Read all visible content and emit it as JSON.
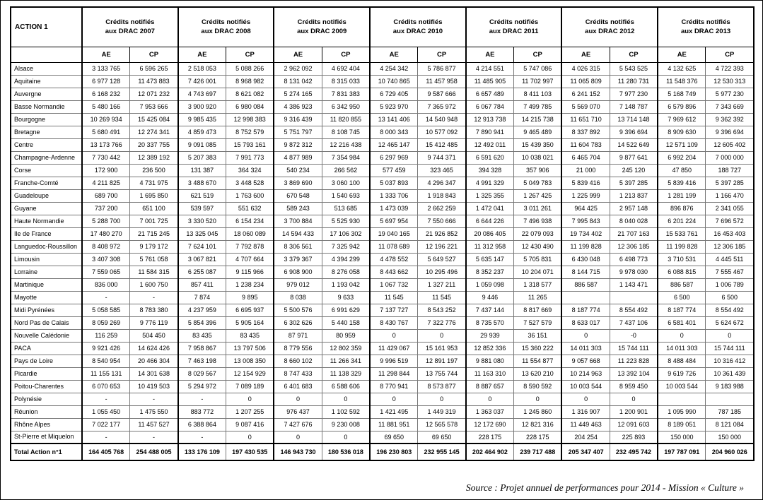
{
  "table": {
    "corner_label": "ACTION 1",
    "subheaders": [
      "AE",
      "CP"
    ],
    "year_groups": [
      {
        "line1": "Crédits notifiés",
        "line2": "aux DRAC 2007"
      },
      {
        "line1": "Crédits notifiés",
        "line2": "aux DRAC 2008"
      },
      {
        "line1": "Crédits notifiés",
        "line2": "aux DRAC 2009"
      },
      {
        "line1": "Crédits notifiés",
        "line2": "aux DRAC 2010"
      },
      {
        "line1": "Crédits notifiés",
        "line2": "aux DRAC 2011"
      },
      {
        "line1": "Crédits notifiés",
        "line2": "aux DRAC 2012"
      },
      {
        "line1": "Crédits notifiés",
        "line2": "aux DRAC 2013"
      }
    ],
    "rows": [
      {
        "region": "Alsace",
        "values": [
          "3 133 765",
          "6 596 265",
          "2 518 053",
          "5 088 266",
          "2 962 092",
          "4 692 404",
          "4 254 342",
          "5 786 877",
          "4 214 551",
          "5 747 086",
          "4 026 315",
          "5 543 525",
          "4 132 625",
          "4 722 393"
        ]
      },
      {
        "region": "Aquitaine",
        "values": [
          "6 977 128",
          "11 473 883",
          "7 426 001",
          "8 968 982",
          "8 131 042",
          "8 315 033",
          "10 740 865",
          "11 457 958",
          "11 485 905",
          "11 702 997",
          "11 065 809",
          "11 280 731",
          "11 548 376",
          "12 530 313"
        ]
      },
      {
        "region": "Auvergne",
        "values": [
          "6 168 232",
          "12 071 232",
          "4 743 697",
          "8 621 082",
          "5 274 165",
          "7 831 383",
          "6 729 405",
          "9 587 666",
          "6 657 489",
          "8 411 103",
          "6 241 152",
          "7 977 230",
          "5 168 749",
          "5 977 230"
        ]
      },
      {
        "region": "Basse Normandie",
        "values": [
          "5 480 166",
          "7 953 666",
          "3 900 920",
          "6 980 084",
          "4 386 923",
          "6 342 950",
          "5 923 970",
          "7 365 972",
          "6 067 784",
          "7 499 785",
          "5 569 070",
          "7 148 787",
          "6 579 896",
          "7 343 669"
        ]
      },
      {
        "region": "Bourgogne",
        "values": [
          "10 269 934",
          "15 425 084",
          "9 985 435",
          "12 998 383",
          "9 316 439",
          "11 820 855",
          "13 141 406",
          "14 540 948",
          "12 913 738",
          "14 215 738",
          "11 651 710",
          "13 714 148",
          "7 969 612",
          "9 362 392"
        ]
      },
      {
        "region": "Bretagne",
        "values": [
          "5 680 491",
          "12 274 341",
          "4 859 473",
          "8 752 579",
          "5 751 797",
          "8 108 745",
          "8 000 343",
          "10 577 092",
          "7 890 941",
          "9 465 489",
          "8 337 892",
          "9 396 694",
          "8 909 630",
          "9 396 694"
        ]
      },
      {
        "region": "Centre",
        "values": [
          "13 173 766",
          "20 337 755",
          "9 091 085",
          "15 793 161",
          "9 872 312",
          "12 216 438",
          "12 465 147",
          "15 412 485",
          "12 492 011",
          "15 439 350",
          "11 604 783",
          "14 522 649",
          "12 571 109",
          "12 605 402"
        ]
      },
      {
        "region": "Champagne-Ardenne",
        "values": [
          "7 730 442",
          "12 389 192",
          "5 207 383",
          "7 991 773",
          "4 877 989",
          "7 354 984",
          "6 297 969",
          "9 744 371",
          "6 591 620",
          "10 038 021",
          "6 465 704",
          "9 877 641",
          "6 992 204",
          "7 000 000"
        ]
      },
      {
        "region": "Corse",
        "values": [
          "172 900",
          "236 500",
          "131 387",
          "364 324",
          "540 234",
          "266 562",
          "577 459",
          "323 465",
          "394 328",
          "357 906",
          "21 000",
          "245 120",
          "47 850",
          "188 727"
        ]
      },
      {
        "region": "Franche-Comté",
        "values": [
          "4 211 825",
          "4 731 975",
          "3 488 670",
          "3 448 528",
          "3 869 690",
          "3 060 100",
          "5 037 893",
          "4 296 347",
          "4 991 329",
          "5 049 783",
          "5 839 416",
          "5 397 285",
          "5 839 416",
          "5 397 285"
        ]
      },
      {
        "region": "Guadeloupe",
        "values": [
          "689 700",
          "1 695 850",
          "621 519",
          "1 763 600",
          "670 548",
          "1 540 693",
          "1 333 706",
          "1 918 843",
          "1 325 355",
          "1 267 425",
          "1 225 999",
          "1 213 837",
          "1 281 199",
          "1 166 470"
        ]
      },
      {
        "region": "Guyane",
        "values": [
          "737 200",
          "651 100",
          "539 597",
          "551 632",
          "589 243",
          "513 685",
          "1 473 039",
          "2 662 259",
          "1 472 041",
          "3 011 261",
          "964 425",
          "2 957 148",
          "896 876",
          "2 341 055"
        ]
      },
      {
        "region": "Haute Normandie",
        "values": [
          "5 288 700",
          "7 001 725",
          "3 330 520",
          "6 154 234",
          "3 700 884",
          "5 525 930",
          "5 697 954",
          "7 550 666",
          "6 644 226",
          "7 496 938",
          "7 995 843",
          "8 040 028",
          "6 201 224",
          "7 696 572"
        ]
      },
      {
        "region": "Ile de France",
        "values": [
          "17 480 270",
          "21 715 245",
          "13 325 045",
          "18 060 089",
          "14 594 433",
          "17 106 302",
          "19 040 165",
          "21 926 852",
          "20 086 405",
          "22 079 093",
          "19 734 402",
          "21 707 163",
          "15 533 761",
          "16 453 403"
        ]
      },
      {
        "region": "Languedoc-Roussillon",
        "values": [
          "8 408 972",
          "9 179 172",
          "7 624 101",
          "7 792 878",
          "8 306 561",
          "7 325 942",
          "11 078 689",
          "12 196 221",
          "11 312 958",
          "12 430 490",
          "11 199 828",
          "12 306 185",
          "11 199 828",
          "12 306 185"
        ]
      },
      {
        "region": "Limousin",
        "values": [
          "3 407 308",
          "5 761 058",
          "3 067 821",
          "4 707 664",
          "3 379 367",
          "4 394 299",
          "4 478 552",
          "5 649 527",
          "5 635 147",
          "5 705 831",
          "6 430 048",
          "6 498 773",
          "3 710 531",
          "4 445 511"
        ]
      },
      {
        "region": "Lorraine",
        "values": [
          "7 559 065",
          "11 584 315",
          "6 255 087",
          "9 115 966",
          "6 908 900",
          "8 276 058",
          "8 443 662",
          "10 295 496",
          "8 352 237",
          "10 204 071",
          "8 144 715",
          "9 978 030",
          "6 088 815",
          "7 555 467"
        ]
      },
      {
        "region": "Martinique",
        "values": [
          "836 000",
          "1 600 750",
          "857 411",
          "1 238 234",
          "979 012",
          "1 193 042",
          "1 067 732",
          "1 327 211",
          "1 059 098",
          "1 318 577",
          "886 587",
          "1 143 471",
          "886 587",
          "1 006 789"
        ]
      },
      {
        "region": "Mayotte",
        "values": [
          "-",
          "-",
          "7 874",
          "9 895",
          "8 038",
          "9 633",
          "11 545",
          "11 545",
          "9 446",
          "11 265",
          "",
          "",
          "6 500",
          "6 500"
        ]
      },
      {
        "region": "Midi Pyrénées",
        "values": [
          "5 058 585",
          "8 783 380",
          "4 237 959",
          "6 695 937",
          "5 500 576",
          "6 991 629",
          "7 137 727",
          "8 543 252",
          "7 437 144",
          "8 817 669",
          "8 187 774",
          "8 554 492",
          "8 187 774",
          "8 554 492"
        ]
      },
      {
        "region": "Nord Pas de Calais",
        "values": [
          "8 059 269",
          "9 776 119",
          "5 854 396",
          "5 905 164",
          "6 302 626",
          "5 440 158",
          "8 430 767",
          "7 322 776",
          "8 735 570",
          "7 527 579",
          "8 633 017",
          "7 437 106",
          "6 581 401",
          "5 624 672"
        ]
      },
      {
        "region": "Nouvelle Calédonie",
        "values": [
          "116 259",
          "504 450",
          "83 435",
          "83 435",
          "87 971",
          "80 959",
          "0",
          "0",
          "29 939",
          "36 151",
          "0",
          "-0",
          "0",
          "0"
        ]
      },
      {
        "region": "PACA",
        "values": [
          "9 921 426",
          "14 624 426",
          "7 958 867",
          "13 797 506",
          "8 779 556",
          "12 802 359",
          "11 429 067",
          "15 161 953",
          "12 852 336",
          "15 360 222",
          "14 011 303",
          "15 744 111",
          "14 011 303",
          "15 744 111"
        ]
      },
      {
        "region": "Pays de Loire",
        "values": [
          "8 540 954",
          "20 466 304",
          "7 463 198",
          "13 008 350",
          "8 660 102",
          "11 266 341",
          "9 996 519",
          "12 891 197",
          "9 881 080",
          "11 554 877",
          "9 057 668",
          "11 223 828",
          "8 488 484",
          "10 316 412"
        ]
      },
      {
        "region": "Picardie",
        "values": [
          "11 155 131",
          "14 301 638",
          "8 029 567",
          "12 154 929",
          "8 747 433",
          "11 138 329",
          "11 298 844",
          "13 755 744",
          "11 163 310",
          "13 620 210",
          "10 214 963",
          "13 392 104",
          "9 619 726",
          "10 361 439"
        ]
      },
      {
        "region": "Poitou-Charentes",
        "values": [
          "6 070 653",
          "10 419 503",
          "5 294 972",
          "7 089 189",
          "6 401 683",
          "6 588 606",
          "8 770 941",
          "8 573 877",
          "8 887 657",
          "8 590 592",
          "10 003 544",
          "8 959 450",
          "10 003 544",
          "9 183 988"
        ]
      },
      {
        "region": "Polynésie",
        "values": [
          "-",
          "-",
          "-",
          "0",
          "0",
          "0",
          "0",
          "0",
          "0",
          "0",
          "0",
          "0",
          "",
          ""
        ]
      },
      {
        "region": "Réunion",
        "values": [
          "1 055 450",
          "1 475 550",
          "883 772",
          "1 207 255",
          "976 437",
          "1 102 592",
          "1 421 495",
          "1 449 319",
          "1 363 037",
          "1 245 860",
          "1 316 907",
          "1 200 901",
          "1 095 990",
          "787 185"
        ]
      },
      {
        "region": "Rhône Alpes",
        "values": [
          "7 022 177",
          "11 457 527",
          "6 388 864",
          "9 087 416",
          "7 427 676",
          "9 230 008",
          "11 881 951",
          "12 565 578",
          "12 172 690",
          "12 821 316",
          "11 449 463",
          "12 091 603",
          "8 189 051",
          "8 121 084"
        ]
      },
      {
        "region": "St-Pierre et Miquelon",
        "values": [
          "-",
          "-",
          "-",
          "0",
          "0",
          "0",
          "69 650",
          "69 650",
          "228 175",
          "228 175",
          "204 254",
          "225 893",
          "150 000",
          "150 000"
        ]
      }
    ],
    "total": {
      "label": "Total Action n°1",
      "values": [
        "164 405 768",
        "254 488 005",
        "133 176 109",
        "197 430 535",
        "146 943 730",
        "180 536 018",
        "196 230 803",
        "232 955 145",
        "202 464 902",
        "239 717 488",
        "205 347 407",
        "232 495 742",
        "197 787 091",
        "204 960 026"
      ]
    }
  },
  "source": "Source : Projet annuel de performances pour 2014 -  Mission « Culture »"
}
